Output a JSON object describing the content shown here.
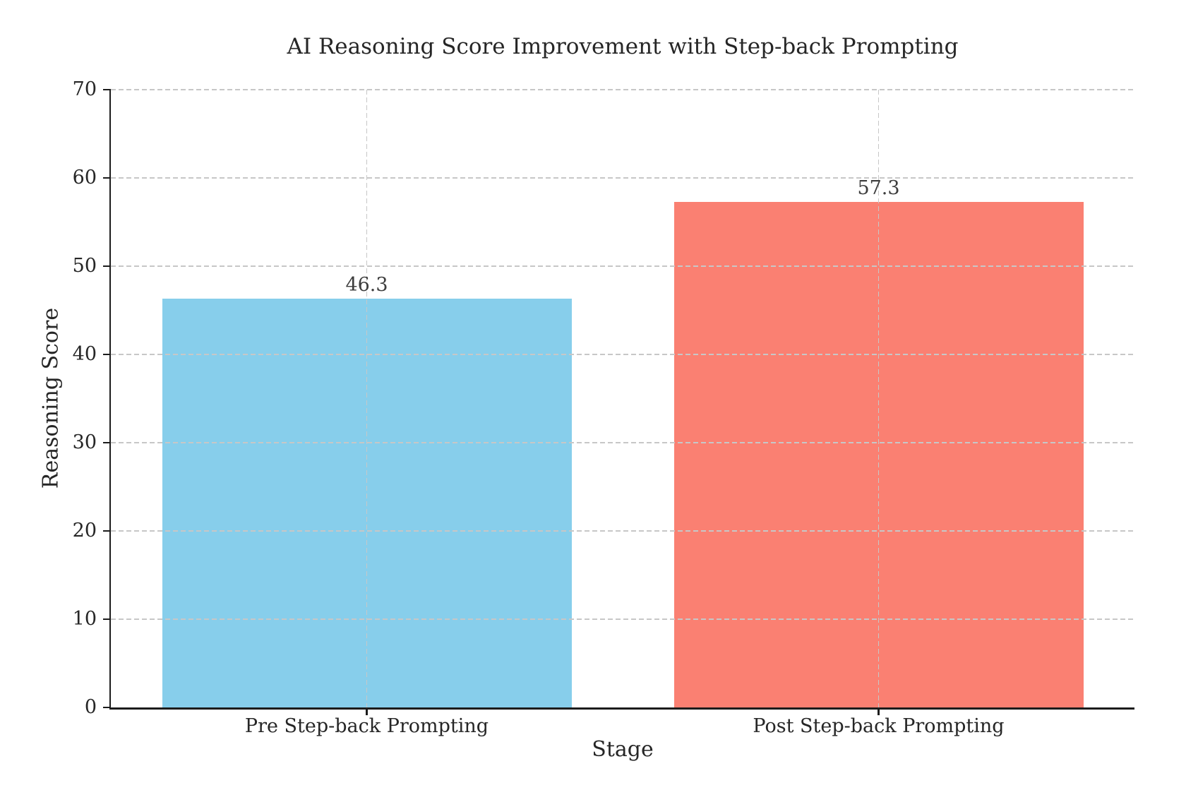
{
  "chart_data": {
    "type": "bar",
    "title": "AI Reasoning Score Improvement with Step-back Prompting",
    "xlabel": "Stage",
    "ylabel": "Reasoning Score",
    "categories": [
      "Pre Step-back Prompting",
      "Post Step-back Prompting"
    ],
    "values": [
      46.3,
      57.3
    ],
    "value_labels": [
      "46.3",
      "57.3"
    ],
    "bar_colors": [
      "#87CEEB",
      "#FA8072"
    ],
    "ylim": [
      0,
      70
    ],
    "yticks": [
      0,
      10,
      20,
      30,
      40,
      50,
      60,
      70
    ],
    "grid": {
      "visible": true,
      "axis": "both",
      "style": "dashed",
      "color": "#c7c7c7",
      "above_bars": true
    },
    "legend_position": "none"
  },
  "colors": {
    "background": "#ffffff",
    "spine": "#1c1c1c",
    "axis_text": "#262626",
    "value_label_text": "#3d3d3d"
  }
}
